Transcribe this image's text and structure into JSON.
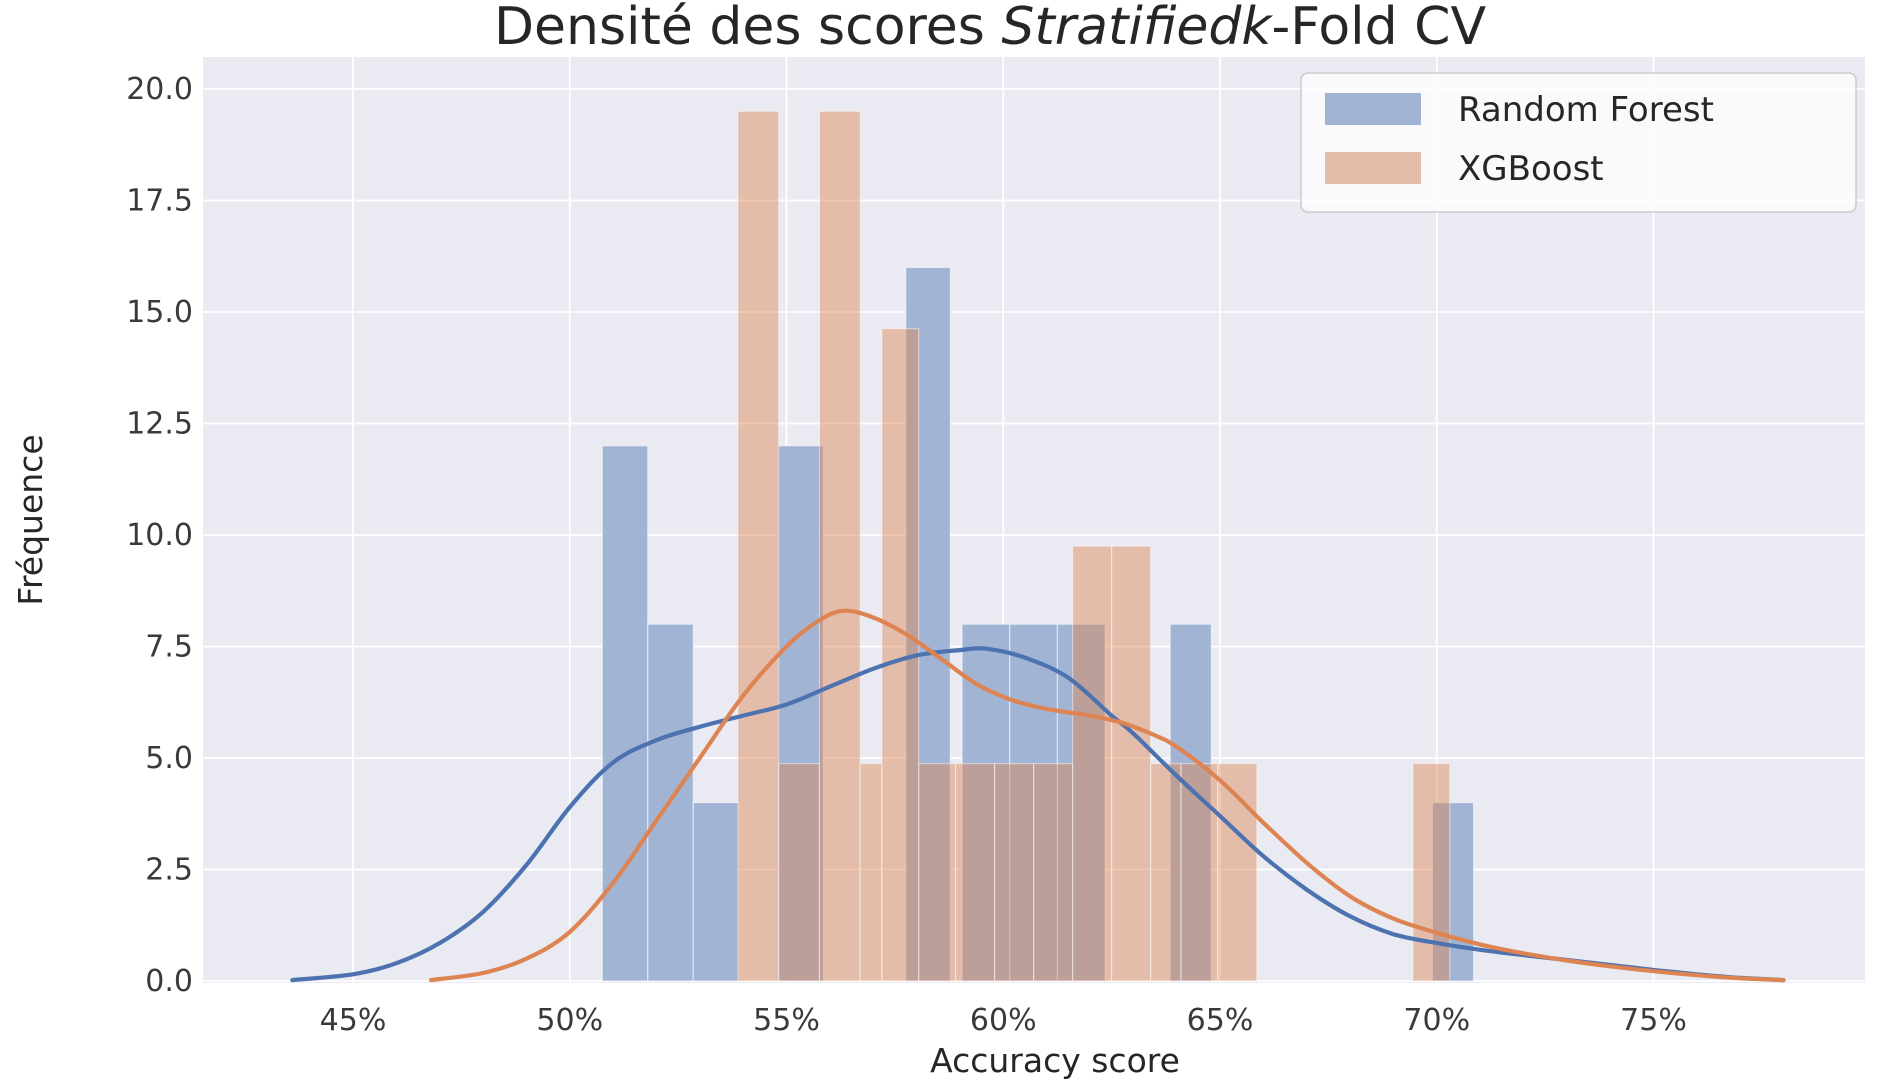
{
  "chart_data": {
    "type": "histogram+kde",
    "title_prefix": "Densité des scores ",
    "title_italic": "Stratifiedk",
    "title_suffix": "-Fold CV",
    "xlabel": "Accuracy score",
    "ylabel": "Fréquence",
    "x_ticks": [
      {
        "value": 45,
        "label": "45%"
      },
      {
        "value": 50,
        "label": "50%"
      },
      {
        "value": 55,
        "label": "55%"
      },
      {
        "value": 60,
        "label": "60%"
      },
      {
        "value": 65,
        "label": "65%"
      },
      {
        "value": 70,
        "label": "70%"
      },
      {
        "value": 75,
        "label": "75%"
      }
    ],
    "y_ticks": [
      {
        "value": 0,
        "label": "0.0"
      },
      {
        "value": 2.5,
        "label": "2.5"
      },
      {
        "value": 5,
        "label": "5.0"
      },
      {
        "value": 7.5,
        "label": "7.5"
      },
      {
        "value": 10,
        "label": "10.0"
      },
      {
        "value": 12.5,
        "label": "12.5"
      },
      {
        "value": 15,
        "label": "15.0"
      },
      {
        "value": 17.5,
        "label": "17.5"
      },
      {
        "value": 20,
        "label": "20.0"
      }
    ],
    "xlim": [
      41.5,
      79.9
    ],
    "ylim": [
      0,
      20.75
    ],
    "grid": true,
    "legend_position": "upper right",
    "series": [
      {
        "name": "Random Forest",
        "bar_color": "#a2b4d4",
        "line_color": "#4c72b0",
        "bars": [
          {
            "from": 50.75,
            "to": 51.8,
            "height": 12
          },
          {
            "from": 51.8,
            "to": 52.85,
            "height": 8
          },
          {
            "from": 52.85,
            "to": 53.9,
            "height": 4
          },
          {
            "from": 54.8,
            "to": 55.85,
            "height": 12
          },
          {
            "from": 57.75,
            "to": 58.78,
            "height": 16
          },
          {
            "from": 59.05,
            "to": 60.15,
            "height": 8
          },
          {
            "from": 60.15,
            "to": 61.25,
            "height": 8
          },
          {
            "from": 61.25,
            "to": 62.35,
            "height": 8
          },
          {
            "from": 63.85,
            "to": 64.8,
            "height": 8
          },
          {
            "from": 69.9,
            "to": 70.85,
            "height": 4
          }
        ],
        "kde": [
          [
            43.6,
            0.02
          ],
          [
            45,
            0.15
          ],
          [
            46,
            0.4
          ],
          [
            47,
            0.85
          ],
          [
            48,
            1.55
          ],
          [
            49,
            2.6
          ],
          [
            50,
            3.9
          ],
          [
            51,
            4.9
          ],
          [
            52,
            5.4
          ],
          [
            53,
            5.7
          ],
          [
            54,
            5.95
          ],
          [
            55,
            6.2
          ],
          [
            56,
            6.6
          ],
          [
            57,
            7.0
          ],
          [
            58,
            7.3
          ],
          [
            59,
            7.42
          ],
          [
            59.6,
            7.45
          ],
          [
            60.5,
            7.25
          ],
          [
            61.5,
            6.8
          ],
          [
            62.5,
            5.95
          ],
          [
            63,
            5.55
          ],
          [
            64,
            4.6
          ],
          [
            65,
            3.7
          ],
          [
            66,
            2.8
          ],
          [
            67,
            2.05
          ],
          [
            68,
            1.45
          ],
          [
            69,
            1.05
          ],
          [
            70,
            0.85
          ],
          [
            71,
            0.7
          ],
          [
            72,
            0.58
          ],
          [
            73,
            0.47
          ],
          [
            74,
            0.36
          ],
          [
            75,
            0.25
          ],
          [
            76,
            0.15
          ],
          [
            77,
            0.07
          ],
          [
            78,
            0.02
          ]
        ]
      },
      {
        "name": "XGBoost",
        "bar_color": "#e4bcaa",
        "line_color": "#dd8452",
        "bar_overlay_opacity": 0.45,
        "bars": [
          {
            "from": 53.88,
            "to": 54.82,
            "height": 19.5
          },
          {
            "from": 54.82,
            "to": 55.76,
            "height": 4.875
          },
          {
            "from": 55.76,
            "to": 56.7,
            "height": 19.5
          },
          {
            "from": 56.7,
            "to": 57.2,
            "height": 4.875
          },
          {
            "from": 57.2,
            "to": 58.05,
            "height": 14.625
          },
          {
            "from": 58.05,
            "to": 58.9,
            "height": 4.875
          },
          {
            "from": 58.9,
            "to": 59.8,
            "height": 4.875
          },
          {
            "from": 59.8,
            "to": 60.7,
            "height": 4.875
          },
          {
            "from": 60.7,
            "to": 61.6,
            "height": 4.875
          },
          {
            "from": 61.6,
            "to": 62.5,
            "height": 9.75
          },
          {
            "from": 62.5,
            "to": 63.4,
            "height": 9.75
          },
          {
            "from": 63.4,
            "to": 64.1,
            "height": 4.875
          },
          {
            "from": 64.1,
            "to": 64.95,
            "height": 4.875
          },
          {
            "from": 64.95,
            "to": 65.85,
            "height": 4.875
          },
          {
            "from": 69.45,
            "to": 70.3,
            "height": 4.875
          }
        ],
        "kde": [
          [
            46.8,
            0.02
          ],
          [
            48,
            0.18
          ],
          [
            49,
            0.5
          ],
          [
            50,
            1.1
          ],
          [
            51,
            2.2
          ],
          [
            52,
            3.6
          ],
          [
            53,
            5.0
          ],
          [
            54,
            6.4
          ],
          [
            55,
            7.5
          ],
          [
            55.7,
            8.05
          ],
          [
            56.3,
            8.3
          ],
          [
            57,
            8.15
          ],
          [
            57.8,
            7.75
          ],
          [
            58.6,
            7.2
          ],
          [
            59.4,
            6.65
          ],
          [
            60.2,
            6.3
          ],
          [
            61,
            6.1
          ],
          [
            62,
            5.95
          ],
          [
            62.7,
            5.8
          ],
          [
            63.4,
            5.55
          ],
          [
            64,
            5.25
          ],
          [
            65,
            4.5
          ],
          [
            66,
            3.55
          ],
          [
            67,
            2.65
          ],
          [
            68,
            1.9
          ],
          [
            69,
            1.4
          ],
          [
            70,
            1.08
          ],
          [
            71,
            0.82
          ],
          [
            72,
            0.62
          ],
          [
            73,
            0.46
          ],
          [
            74,
            0.33
          ],
          [
            75,
            0.22
          ],
          [
            76,
            0.13
          ],
          [
            77,
            0.06
          ],
          [
            78,
            0.02
          ]
        ]
      }
    ],
    "colors": {
      "figure_background": "#ffffff",
      "plot_background": "#e9eaf2",
      "gridline": "#ffffff",
      "text": "#262626",
      "legend_background": "#fdfdfe",
      "legend_border": "#cccccc",
      "rf_bar": "#a2b4d4",
      "rf_line": "#4c72b0",
      "xgb_bar": "#e4bcaa",
      "xgb_line": "#dd8452",
      "overlap_bar": "#bc9e99"
    }
  }
}
